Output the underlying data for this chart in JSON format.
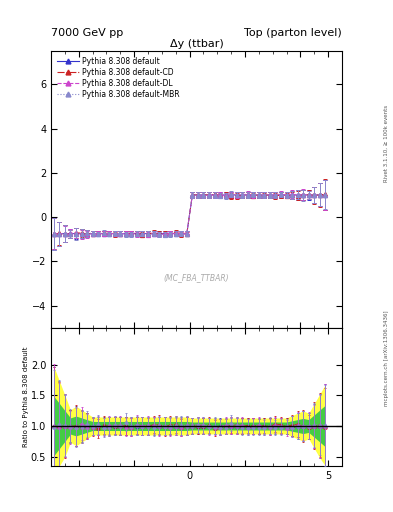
{
  "title_left": "7000 GeV pp",
  "title_right": "Top (parton level)",
  "plot_title": "Δy (ttbar)",
  "watermark": "(MC_FBA_TTBAR)",
  "right_label": "Rivet 3.1.10, ≥ 100k events",
  "arxiv_label": "mcplots.cern.ch [arXiv:1306.3436]",
  "ylabel_ratio": "Ratio to Pythia 8.308 default",
  "xlim": [
    -5.0,
    5.5
  ],
  "ylim_main": [
    -5.0,
    7.5
  ],
  "ylim_ratio": [
    0.35,
    2.6
  ],
  "ratio_yticks": [
    0.5,
    1.0,
    1.5,
    2.0
  ],
  "main_yticks": [
    -4,
    -2,
    0,
    2,
    4,
    6
  ],
  "colors": {
    "default": "#3333cc",
    "CD": "#cc2222",
    "DL": "#cc44cc",
    "MBR": "#8888cc"
  },
  "legend_entries": [
    "Pythia 8.308 default",
    "Pythia 8.308 default-CD",
    "Pythia 8.308 default-DL",
    "Pythia 8.308 default-MBR"
  ],
  "line_styles": [
    "-",
    "-.",
    "--",
    ":"
  ],
  "band_green": "#44cc44",
  "band_yellow": "#ffff44",
  "bg_color": "#ffffff",
  "y_step_neg": -0.75,
  "y_step_pos": 1.0,
  "x_step": 0.0
}
